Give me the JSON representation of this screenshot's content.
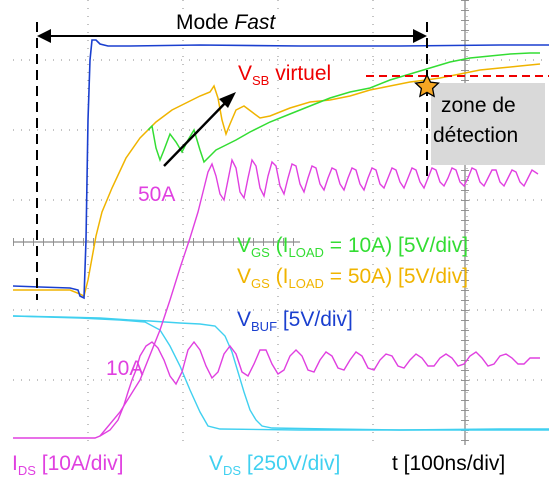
{
  "title": {
    "prefix": "Mode ",
    "fast": "Fast"
  },
  "vsb": {
    "v": "V",
    "sub": "SB",
    "rest": " virtuel"
  },
  "zone": {
    "line1": "zone de",
    "line2": "détection"
  },
  "current_labels": {
    "high": "50A",
    "low": "10A"
  },
  "legend": {
    "vgs10": {
      "v": "V",
      "sub": "GS",
      "p1": " (I",
      "sub2": "LOAD",
      "p2": " = 10A) [5V/div]"
    },
    "vgs50": {
      "v": "V",
      "sub": "GS",
      "p1": " (I",
      "sub2": "LOAD",
      "p2": " = 50A) [5V/div]"
    },
    "vbuf": {
      "v": "V",
      "sub": "BUF",
      "p": " [5V/div]"
    }
  },
  "bottom": {
    "ids": {
      "v": "I",
      "sub": "DS",
      "p": " [10A/div]"
    },
    "vds": {
      "v": "V",
      "sub": "DS",
      "p": " [250V/div]"
    },
    "t": "t [100ns/div]"
  },
  "colors": {
    "vbuf": "#1a3fcf",
    "vgs10": "#33dd33",
    "vgs50": "#f0b400",
    "ids": "#e040e0",
    "vds": "#40d0f0",
    "vsb": "#ee0000",
    "grid": "#8a8a8a",
    "zone_bg": "#d9d9d9",
    "star": "#f5a623"
  },
  "chart_data": {
    "type": "line",
    "grid": true,
    "x_unit": "ns",
    "x_per_div_ns": 100,
    "series": [
      {
        "name": "V_BUF",
        "x": [
          0,
          70,
          78,
          86,
          110,
          200,
          400,
          600,
          700
        ],
        "y": [
          0,
          0,
          -0.3,
          6.6,
          6.4,
          6.5,
          6.45,
          6.5,
          6.5
        ]
      },
      {
        "name": "V_GS (I_LOAD = 10A)",
        "x": [
          100,
          112,
          120,
          130,
          140,
          170,
          200,
          260,
          330,
          400,
          440,
          470,
          500,
          530
        ],
        "y": [
          2.9,
          2.3,
          2.8,
          2.1,
          2.6,
          2.2,
          3.0,
          3.5,
          4.1,
          4.6,
          5.0,
          5.1,
          5.15,
          5.1
        ]
      },
      {
        "name": "V_GS (I_LOAD = 50A)",
        "x": [
          0,
          70,
          78,
          86,
          95,
          110,
          140,
          160,
          180,
          200,
          210,
          215,
          225,
          250,
          300,
          400,
          500,
          530
        ],
        "y": [
          0,
          0,
          -0.3,
          0.4,
          1.4,
          2.3,
          3.2,
          3.6,
          3.85,
          4.0,
          3.9,
          3.0,
          3.2,
          3.4,
          3.6,
          4.1,
          4.6,
          4.6
        ]
      },
      {
        "name": "I_DS 50A",
        "x": [
          85,
          160,
          200,
          240,
          300,
          400,
          500,
          530
        ],
        "y": [
          3.0,
          4.5,
          6.2,
          5.8,
          5.9,
          6.0,
          6.1,
          6.0
        ]
      },
      {
        "name": "I_DS 10A",
        "x": [
          90,
          120,
          150,
          170,
          200,
          300,
          400,
          500,
          530
        ],
        "y": [
          0,
          0.8,
          2.0,
          2.5,
          3.1,
          3.2,
          3.0,
          2.9,
          2.95
        ]
      },
      {
        "name": "V_DS",
        "x": [
          0,
          100,
          150,
          200,
          220,
          245,
          280,
          320,
          530
        ],
        "y": [
          1.9,
          1.9,
          1.85,
          1.8,
          1.0,
          0.1,
          0.05,
          0.05,
          0.05
        ]
      }
    ],
    "annotations": [
      "50A",
      "10A",
      "V_SB virtuel",
      "zone de détection",
      "Mode Fast"
    ]
  }
}
